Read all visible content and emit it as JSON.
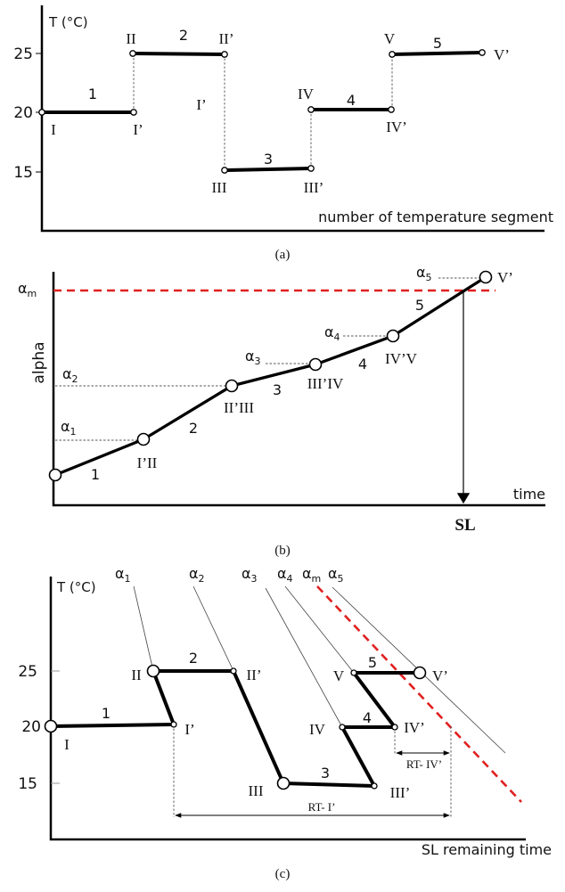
{
  "panel_a": {
    "caption": "(a)",
    "y_label": "T (°C)",
    "x_label": "number of temperature segment",
    "y_ticks": [
      "25",
      "20",
      "15"
    ],
    "segments": [
      "1",
      "2",
      "3",
      "4",
      "5"
    ],
    "points": [
      "I",
      "I’",
      "II",
      "II’",
      "I’",
      "III",
      "III’",
      "IV",
      "IV’",
      "V",
      "V’"
    ]
  },
  "panel_b": {
    "caption": "(b)",
    "y_label": "alpha",
    "x_label": "time",
    "shelf_life": "SL",
    "alpha_symbol": "α",
    "alpha_m_sub": "m",
    "alpha_subs": [
      "1",
      "2",
      "3",
      "4",
      "5"
    ],
    "segments": [
      "1",
      "2",
      "3",
      "4",
      "5"
    ],
    "points": [
      "I’II",
      "II’III",
      "III’IV",
      "IV’V",
      "V’"
    ],
    "colors": {
      "limit_line": "#e02020"
    }
  },
  "panel_c": {
    "caption": "(c)",
    "y_label": "T (°C)",
    "x_label": "SL remaining  time",
    "y_ticks": [
      "25",
      "20",
      "15"
    ],
    "alpha_symbol": "α",
    "alpha_labels": [
      "1",
      "2",
      "3",
      "4",
      "m",
      "5"
    ],
    "segments": [
      "1",
      "2",
      "3",
      "4",
      "5"
    ],
    "points": [
      "I",
      "I’",
      "II",
      "II’",
      "III",
      "III’",
      "IV",
      "IV’",
      "V",
      "V’"
    ],
    "rt_labels": [
      "RT- I’",
      "RT- IV’"
    ],
    "colors": {
      "limit_line": "#e02020"
    }
  }
}
